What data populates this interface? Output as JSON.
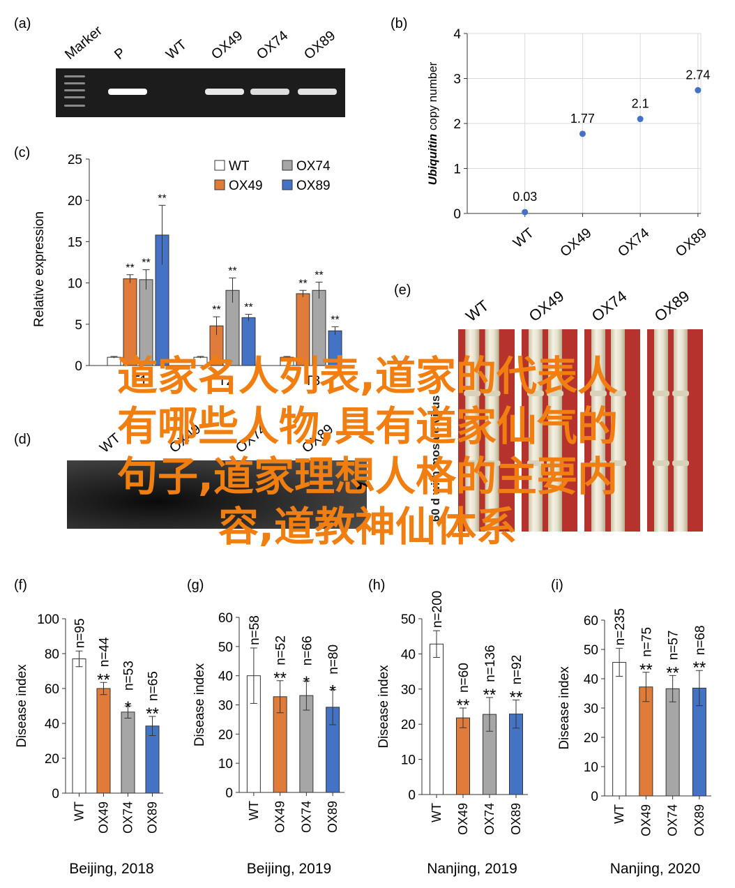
{
  "panel_labels": {
    "a": "(a)",
    "b": "(b)",
    "c": "(c)",
    "d": "(d)",
    "e": "(e)",
    "f": "(f)",
    "g": "(g)",
    "h": "(h)",
    "i": "(i)"
  },
  "colors": {
    "wt": "#ffffff",
    "ox49": "#e07b39",
    "ox74": "#a6a6a6",
    "ox89": "#4472c4",
    "scatter": "#4472c4",
    "overlay": "#f07e10",
    "gel_bg": "#1c1c1c",
    "stem_bg": "#b5322d"
  },
  "gel_a": {
    "lane_labels": [
      "Marker",
      "P",
      "WT",
      "OX49",
      "OX74",
      "OX89"
    ],
    "band_intensity": [
      0,
      1.0,
      0,
      0.8,
      0.7,
      0.75
    ]
  },
  "gel_d": {
    "lane_labels": [
      "WT",
      "OX49",
      "OX74",
      "OX89"
    ]
  },
  "photo_e": {
    "labels": [
      "WT",
      "OX49",
      "OX74",
      "OX89"
    ],
    "side_text": "60 d with mosaic virus"
  },
  "overlay_text": [
    "道家名人列表,道家的代表人",
    "有哪些人物,具有道家仙气的",
    "句子,道家理想人格的主要内",
    "容,道教神仙体系"
  ],
  "chart_data": [
    {
      "id": "b",
      "type": "scatter",
      "title": "",
      "xlabel": "",
      "ylabel_italic": "Ubiquitin",
      "ylabel_rest": " copy number",
      "categories": [
        "WT",
        "OX49",
        "OX74",
        "OX89"
      ],
      "values": [
        0.03,
        1.77,
        2.1,
        2.74
      ],
      "value_labels": [
        "0.03",
        "1.77",
        "2.1",
        "2.74"
      ],
      "ylim": [
        0,
        4
      ],
      "yticks": [
        "0",
        "1",
        "2",
        "3",
        "4"
      ],
      "grid": true
    },
    {
      "id": "c",
      "type": "bar",
      "ylabel": "Relative expression",
      "ylim": [
        0,
        25
      ],
      "yticks": [
        "0",
        "5",
        "10",
        "15",
        "20",
        "25"
      ],
      "categories": [
        "T1",
        "T2",
        "T3"
      ],
      "legend": "top-right",
      "series": [
        {
          "name": "WT",
          "color": "wt",
          "values": [
            1.0,
            1.0,
            1.0
          ],
          "errors": [
            0.1,
            0.1,
            0.1
          ],
          "sig": [
            "",
            "",
            ""
          ]
        },
        {
          "name": "OX49",
          "color": "ox49",
          "values": [
            10.5,
            4.8,
            8.7
          ],
          "errors": [
            0.5,
            1.1,
            0.4
          ],
          "sig": [
            "**",
            "**",
            "**"
          ]
        },
        {
          "name": "OX74",
          "color": "ox74",
          "values": [
            10.4,
            9.1,
            9.1
          ],
          "errors": [
            1.2,
            1.5,
            1.0
          ],
          "sig": [
            "**",
            "**",
            "**"
          ]
        },
        {
          "name": "OX89",
          "color": "ox89",
          "values": [
            15.8,
            5.8,
            4.2
          ],
          "errors": [
            3.6,
            0.4,
            0.5
          ],
          "sig": [
            "**",
            "**",
            "**"
          ]
        }
      ]
    },
    {
      "id": "f",
      "type": "bar",
      "ylabel": "Disease index",
      "xlabel": "Beijing, 2018",
      "ylim": [
        0,
        100
      ],
      "yticks": [
        "0",
        "20",
        "40",
        "60",
        "80",
        "100"
      ],
      "categories": [
        "WT",
        "OX49",
        "OX74",
        "OX89"
      ],
      "values": [
        77,
        60,
        46.5,
        38.5
      ],
      "errors": [
        4.5,
        3.5,
        3.5,
        5.5
      ],
      "sig": [
        "",
        "**",
        "*",
        "**"
      ],
      "n": [
        "n=95",
        "n=44",
        "n=53",
        "n=65"
      ]
    },
    {
      "id": "g",
      "type": "bar",
      "ylabel": "Disease index",
      "xlabel": "Beijing, 2019",
      "ylim": [
        0,
        60
      ],
      "yticks": [
        "0",
        "10",
        "20",
        "30",
        "40",
        "50",
        "60"
      ],
      "categories": [
        "WT",
        "OX49",
        "OX74",
        "OX89"
      ],
      "values": [
        40,
        32.8,
        33.2,
        29.2
      ],
      "errors": [
        9.5,
        5.5,
        5.0,
        6.0
      ],
      "sig": [
        "",
        "**",
        "*",
        "*"
      ],
      "n": [
        "n=58",
        "n=52",
        "n=66",
        "n=80"
      ]
    },
    {
      "id": "h",
      "type": "bar",
      "ylabel": "Disease index",
      "xlabel": "Nanjing, 2019",
      "ylim": [
        0,
        50
      ],
      "yticks": [
        "0",
        "10",
        "20",
        "30",
        "40",
        "50"
      ],
      "categories": [
        "WT",
        "OX49",
        "OX74",
        "OX89"
      ],
      "values": [
        42.8,
        21.8,
        22.8,
        22.9
      ],
      "errors": [
        3.8,
        2.8,
        4.8,
        4.0
      ],
      "sig": [
        "",
        "**",
        "**",
        "**"
      ],
      "n": [
        "n=200",
        "n=60",
        "n=136",
        "n=92"
      ]
    },
    {
      "id": "i",
      "type": "bar",
      "ylabel": "Disease index",
      "xlabel": "Nanjing, 2020",
      "ylim": [
        0,
        60
      ],
      "yticks": [
        "0",
        "10",
        "20",
        "30",
        "40",
        "50",
        "60"
      ],
      "categories": [
        "WT",
        "OX49",
        "OX74",
        "OX89"
      ],
      "values": [
        45.6,
        37.2,
        36.6,
        36.8
      ],
      "errors": [
        4.8,
        5.0,
        4.5,
        6.0
      ],
      "sig": [
        "",
        "**",
        "**",
        "**"
      ],
      "n": [
        "n=235",
        "n=75",
        "n=57",
        "n=68"
      ]
    }
  ]
}
